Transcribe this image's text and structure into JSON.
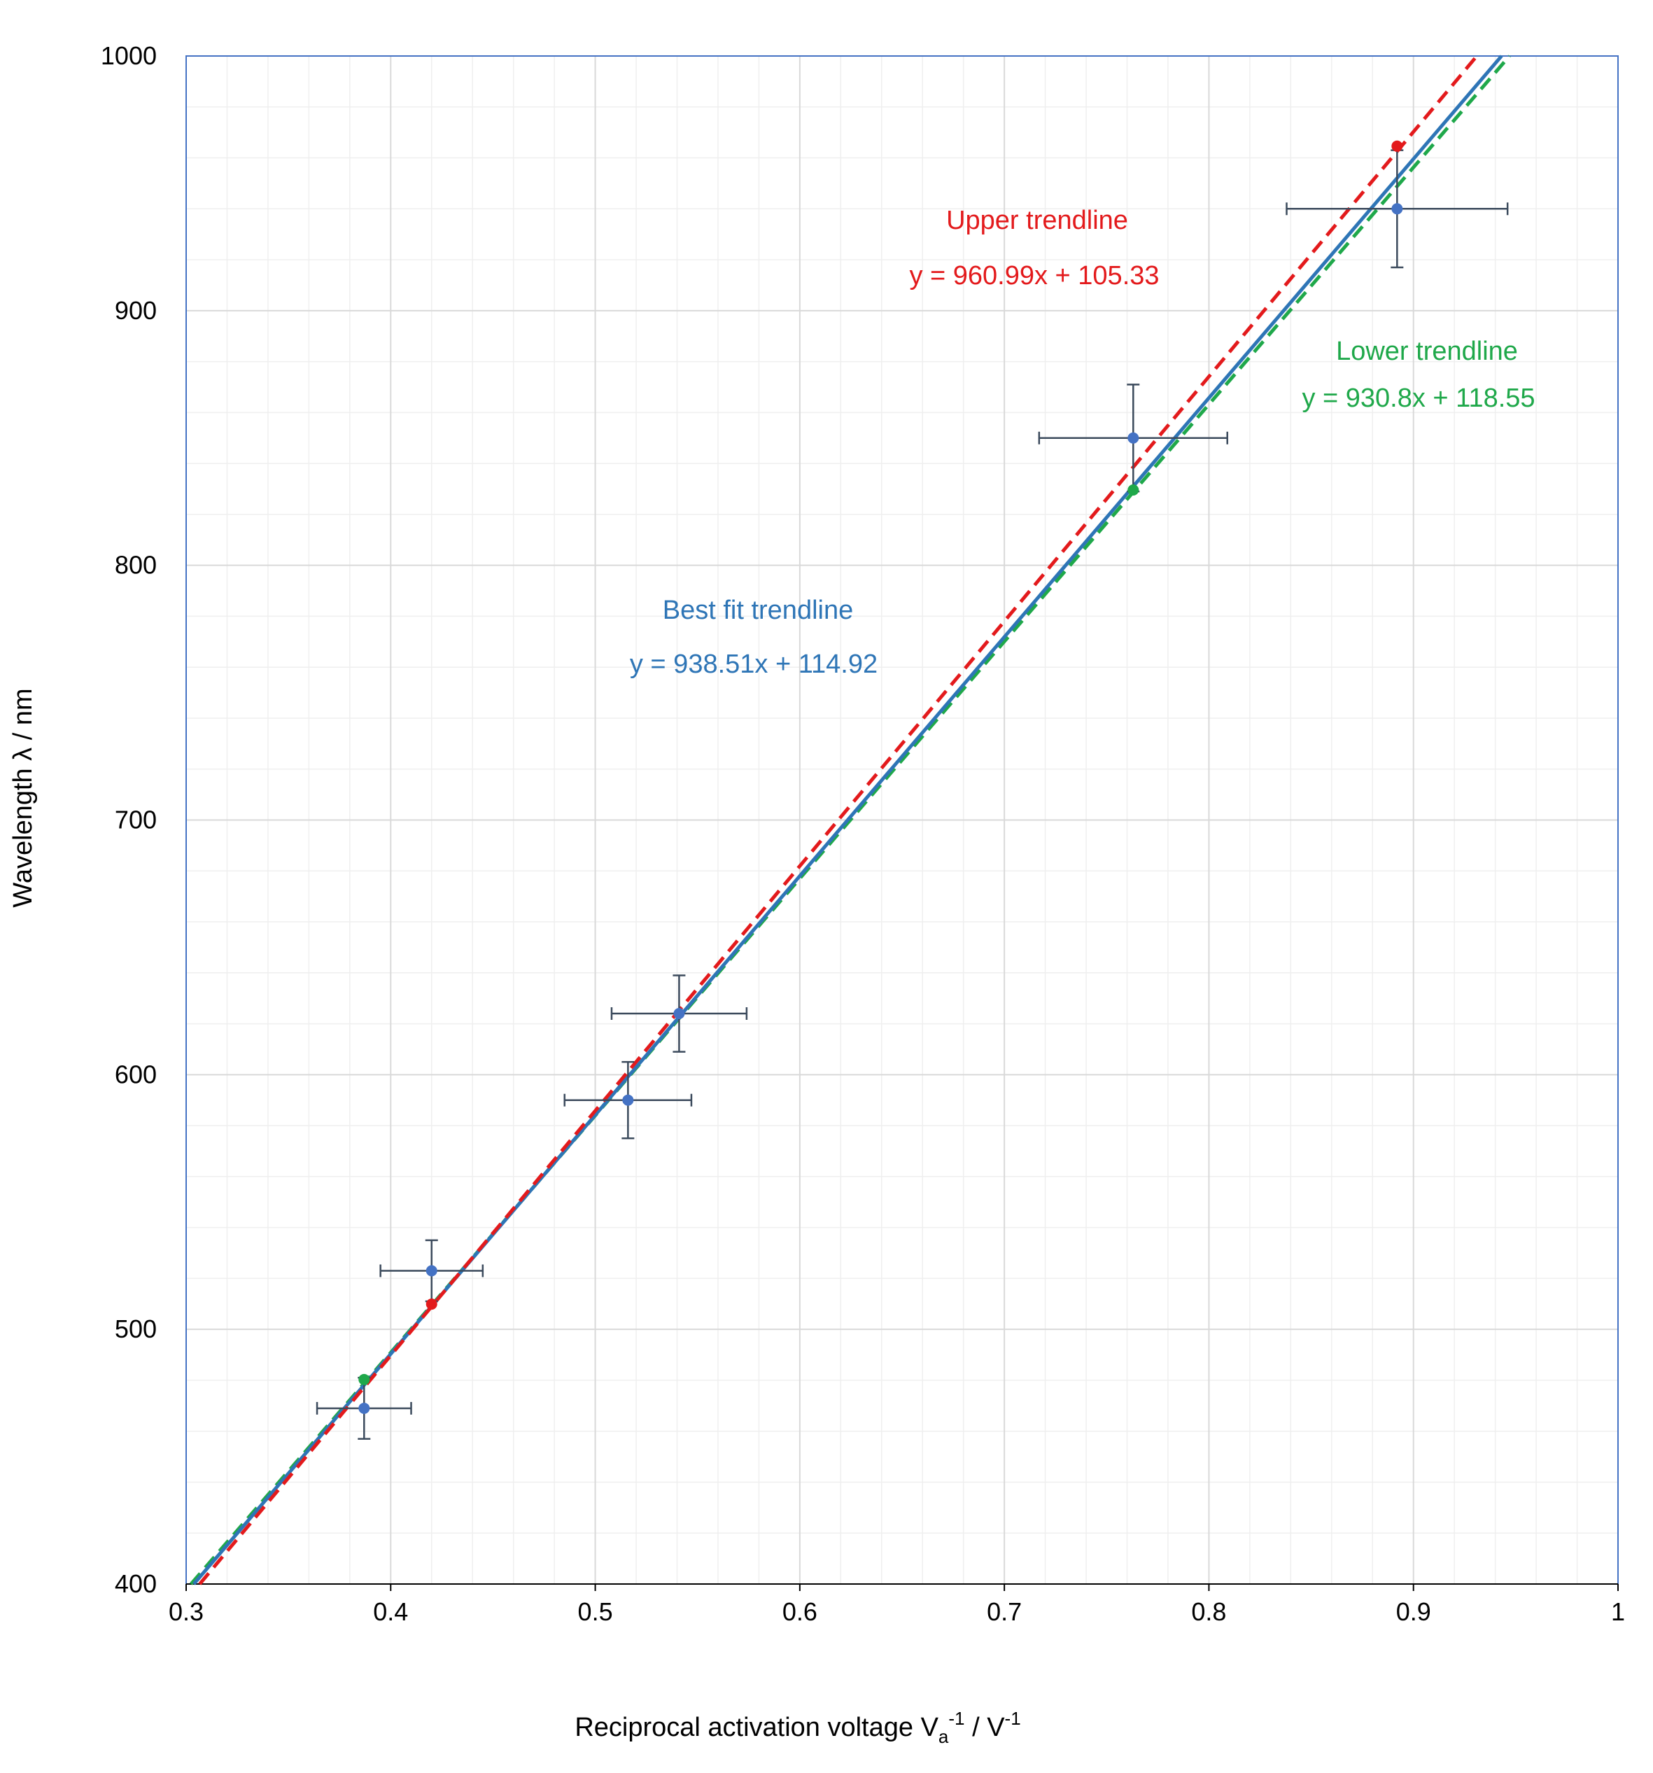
{
  "chart_data": {
    "type": "scatter",
    "xlabel": {
      "main": "Reciprocal activation voltage V",
      "sub": "a",
      "sup1": "-1",
      "sep": "  / V",
      "sup2": "-1"
    },
    "ylabel": "Wavelength λ / nm",
    "xlim": [
      0.3,
      1
    ],
    "ylim": [
      400,
      1000
    ],
    "x_ticks": [
      "0.3",
      "0.4",
      "0.5",
      "0.6",
      "0.7",
      "0.8",
      "0.9",
      "1"
    ],
    "y_ticks": [
      "400",
      "500",
      "600",
      "700",
      "800",
      "900",
      "1000"
    ],
    "grid": true,
    "colors": {
      "data": "#4472c4",
      "best_fit": "#2e75b6",
      "upper": "#e31a1c",
      "lower": "#1fa84a",
      "error_bars": "#3b4a5c",
      "grid_major": "#d9d9d9",
      "grid_minor": "#efefef",
      "frame": "#4472c4"
    },
    "series": [
      {
        "role": "data",
        "x": [
          0.387,
          0.42,
          0.516,
          0.541,
          0.763,
          0.892
        ],
        "y": [
          469,
          523,
          590,
          624,
          850,
          940
        ],
        "x_err": [
          0.023,
          0.025,
          0.031,
          0.033,
          0.046,
          0.054
        ],
        "y_err": [
          12,
          12,
          15,
          15,
          21,
          23
        ]
      },
      {
        "role": "upper_points",
        "x": [
          0.42,
          0.892
        ],
        "y": [
          509.9,
          964.6
        ]
      },
      {
        "role": "lower_points",
        "x": [
          0.387,
          0.763
        ],
        "y": [
          480.3,
          829.6
        ]
      }
    ],
    "trendlines": [
      {
        "id": "best",
        "slope": 938.51,
        "intercept": 114.92,
        "style": "solid"
      },
      {
        "id": "upper",
        "slope": 960.99,
        "intercept": 105.33,
        "style": "dashed"
      },
      {
        "id": "lower",
        "slope": 930.8,
        "intercept": 118.55,
        "style": "dashed"
      }
    ],
    "annotations": {
      "upper_title": "Upper trendline",
      "upper_eq": "y = 960.99x + 105.33",
      "lower_title": "Lower trendline",
      "lower_eq": "y = 930.8x + 118.55",
      "best_title": "Best fit trendline",
      "best_eq": "y = 938.51x + 114.92"
    }
  }
}
